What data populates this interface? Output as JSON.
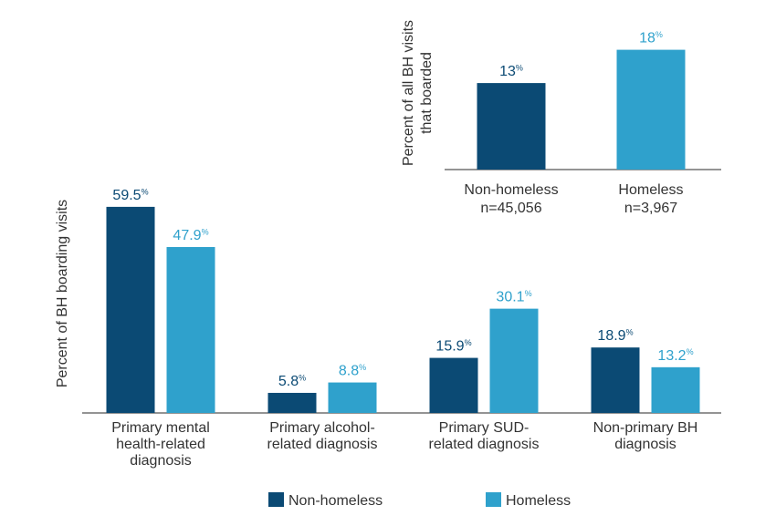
{
  "colors": {
    "non_homeless": "#0b4a74",
    "homeless": "#2fa1cc",
    "axis": "#555555",
    "text": "#333333"
  },
  "chart_data": [
    {
      "type": "bar",
      "ylabel": "Percent of BH boarding visits",
      "categories": [
        [
          "Primary mental",
          "health-related",
          "diagnosis"
        ],
        [
          "Primary alcohol-",
          "related diagnosis"
        ],
        [
          "Primary SUD-",
          "related diagnosis"
        ],
        [
          "Non-primary BH",
          "diagnosis"
        ]
      ],
      "series": [
        {
          "name": "Non-homeless",
          "values": [
            59.5,
            5.8,
            15.9,
            18.9
          ],
          "labels": [
            "59.5",
            "5.8",
            "15.9",
            "18.9"
          ]
        },
        {
          "name": "Homeless",
          "values": [
            47.9,
            8.8,
            30.1,
            13.2
          ],
          "labels": [
            "47.9",
            "8.8",
            "30.1",
            "13.2"
          ]
        }
      ],
      "value_suffix": "%",
      "legend": {
        "position": "bottom",
        "items": [
          "Non-homeless",
          "Homeless"
        ]
      }
    },
    {
      "type": "bar",
      "ylabel": [
        "Percent of all BH visits",
        "that boarded"
      ],
      "categories": [
        [
          "Non-homeless",
          "n=45,056"
        ],
        [
          "Homeless",
          "n=3,967"
        ]
      ],
      "values": [
        13,
        18
      ],
      "labels": [
        "13",
        "18"
      ],
      "value_suffix": "%"
    }
  ]
}
